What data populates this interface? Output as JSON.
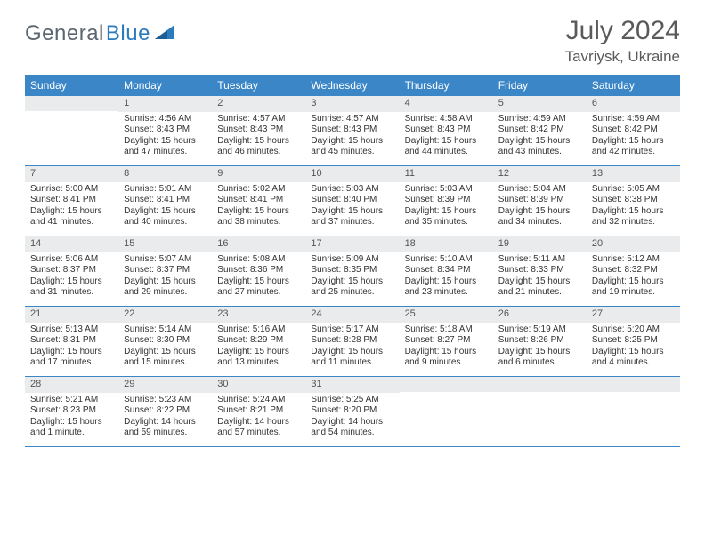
{
  "brand": {
    "part1": "General",
    "part2": "Blue"
  },
  "title": "July 2024",
  "location": "Tavriysk, Ukraine",
  "colors": {
    "header_bar": "#3b86c7",
    "daynum_bg": "#e9ebec",
    "row_border": "#3b86c7",
    "text": "#333333",
    "logo_gray": "#5c6670",
    "logo_blue": "#2b7bbf",
    "title_gray": "#5a5a5a",
    "background": "#ffffff"
  },
  "fonts": {
    "family": "Arial",
    "title_size_pt": 22,
    "location_size_pt": 13,
    "dow_size_pt": 9,
    "daynum_size_pt": 8,
    "body_size_pt": 7.5
  },
  "dow": [
    "Sunday",
    "Monday",
    "Tuesday",
    "Wednesday",
    "Thursday",
    "Friday",
    "Saturday"
  ],
  "weeks": [
    [
      {
        "n": "",
        "sunrise": "",
        "sunset": "",
        "daylight": ""
      },
      {
        "n": "1",
        "sunrise": "Sunrise: 4:56 AM",
        "sunset": "Sunset: 8:43 PM",
        "daylight": "Daylight: 15 hours and 47 minutes."
      },
      {
        "n": "2",
        "sunrise": "Sunrise: 4:57 AM",
        "sunset": "Sunset: 8:43 PM",
        "daylight": "Daylight: 15 hours and 46 minutes."
      },
      {
        "n": "3",
        "sunrise": "Sunrise: 4:57 AM",
        "sunset": "Sunset: 8:43 PM",
        "daylight": "Daylight: 15 hours and 45 minutes."
      },
      {
        "n": "4",
        "sunrise": "Sunrise: 4:58 AM",
        "sunset": "Sunset: 8:43 PM",
        "daylight": "Daylight: 15 hours and 44 minutes."
      },
      {
        "n": "5",
        "sunrise": "Sunrise: 4:59 AM",
        "sunset": "Sunset: 8:42 PM",
        "daylight": "Daylight: 15 hours and 43 minutes."
      },
      {
        "n": "6",
        "sunrise": "Sunrise: 4:59 AM",
        "sunset": "Sunset: 8:42 PM",
        "daylight": "Daylight: 15 hours and 42 minutes."
      }
    ],
    [
      {
        "n": "7",
        "sunrise": "Sunrise: 5:00 AM",
        "sunset": "Sunset: 8:41 PM",
        "daylight": "Daylight: 15 hours and 41 minutes."
      },
      {
        "n": "8",
        "sunrise": "Sunrise: 5:01 AM",
        "sunset": "Sunset: 8:41 PM",
        "daylight": "Daylight: 15 hours and 40 minutes."
      },
      {
        "n": "9",
        "sunrise": "Sunrise: 5:02 AM",
        "sunset": "Sunset: 8:41 PM",
        "daylight": "Daylight: 15 hours and 38 minutes."
      },
      {
        "n": "10",
        "sunrise": "Sunrise: 5:03 AM",
        "sunset": "Sunset: 8:40 PM",
        "daylight": "Daylight: 15 hours and 37 minutes."
      },
      {
        "n": "11",
        "sunrise": "Sunrise: 5:03 AM",
        "sunset": "Sunset: 8:39 PM",
        "daylight": "Daylight: 15 hours and 35 minutes."
      },
      {
        "n": "12",
        "sunrise": "Sunrise: 5:04 AM",
        "sunset": "Sunset: 8:39 PM",
        "daylight": "Daylight: 15 hours and 34 minutes."
      },
      {
        "n": "13",
        "sunrise": "Sunrise: 5:05 AM",
        "sunset": "Sunset: 8:38 PM",
        "daylight": "Daylight: 15 hours and 32 minutes."
      }
    ],
    [
      {
        "n": "14",
        "sunrise": "Sunrise: 5:06 AM",
        "sunset": "Sunset: 8:37 PM",
        "daylight": "Daylight: 15 hours and 31 minutes."
      },
      {
        "n": "15",
        "sunrise": "Sunrise: 5:07 AM",
        "sunset": "Sunset: 8:37 PM",
        "daylight": "Daylight: 15 hours and 29 minutes."
      },
      {
        "n": "16",
        "sunrise": "Sunrise: 5:08 AM",
        "sunset": "Sunset: 8:36 PM",
        "daylight": "Daylight: 15 hours and 27 minutes."
      },
      {
        "n": "17",
        "sunrise": "Sunrise: 5:09 AM",
        "sunset": "Sunset: 8:35 PM",
        "daylight": "Daylight: 15 hours and 25 minutes."
      },
      {
        "n": "18",
        "sunrise": "Sunrise: 5:10 AM",
        "sunset": "Sunset: 8:34 PM",
        "daylight": "Daylight: 15 hours and 23 minutes."
      },
      {
        "n": "19",
        "sunrise": "Sunrise: 5:11 AM",
        "sunset": "Sunset: 8:33 PM",
        "daylight": "Daylight: 15 hours and 21 minutes."
      },
      {
        "n": "20",
        "sunrise": "Sunrise: 5:12 AM",
        "sunset": "Sunset: 8:32 PM",
        "daylight": "Daylight: 15 hours and 19 minutes."
      }
    ],
    [
      {
        "n": "21",
        "sunrise": "Sunrise: 5:13 AM",
        "sunset": "Sunset: 8:31 PM",
        "daylight": "Daylight: 15 hours and 17 minutes."
      },
      {
        "n": "22",
        "sunrise": "Sunrise: 5:14 AM",
        "sunset": "Sunset: 8:30 PM",
        "daylight": "Daylight: 15 hours and 15 minutes."
      },
      {
        "n": "23",
        "sunrise": "Sunrise: 5:16 AM",
        "sunset": "Sunset: 8:29 PM",
        "daylight": "Daylight: 15 hours and 13 minutes."
      },
      {
        "n": "24",
        "sunrise": "Sunrise: 5:17 AM",
        "sunset": "Sunset: 8:28 PM",
        "daylight": "Daylight: 15 hours and 11 minutes."
      },
      {
        "n": "25",
        "sunrise": "Sunrise: 5:18 AM",
        "sunset": "Sunset: 8:27 PM",
        "daylight": "Daylight: 15 hours and 9 minutes."
      },
      {
        "n": "26",
        "sunrise": "Sunrise: 5:19 AM",
        "sunset": "Sunset: 8:26 PM",
        "daylight": "Daylight: 15 hours and 6 minutes."
      },
      {
        "n": "27",
        "sunrise": "Sunrise: 5:20 AM",
        "sunset": "Sunset: 8:25 PM",
        "daylight": "Daylight: 15 hours and 4 minutes."
      }
    ],
    [
      {
        "n": "28",
        "sunrise": "Sunrise: 5:21 AM",
        "sunset": "Sunset: 8:23 PM",
        "daylight": "Daylight: 15 hours and 1 minute."
      },
      {
        "n": "29",
        "sunrise": "Sunrise: 5:23 AM",
        "sunset": "Sunset: 8:22 PM",
        "daylight": "Daylight: 14 hours and 59 minutes."
      },
      {
        "n": "30",
        "sunrise": "Sunrise: 5:24 AM",
        "sunset": "Sunset: 8:21 PM",
        "daylight": "Daylight: 14 hours and 57 minutes."
      },
      {
        "n": "31",
        "sunrise": "Sunrise: 5:25 AM",
        "sunset": "Sunset: 8:20 PM",
        "daylight": "Daylight: 14 hours and 54 minutes."
      },
      {
        "n": "",
        "sunrise": "",
        "sunset": "",
        "daylight": ""
      },
      {
        "n": "",
        "sunrise": "",
        "sunset": "",
        "daylight": ""
      },
      {
        "n": "",
        "sunrise": "",
        "sunset": "",
        "daylight": ""
      }
    ]
  ]
}
